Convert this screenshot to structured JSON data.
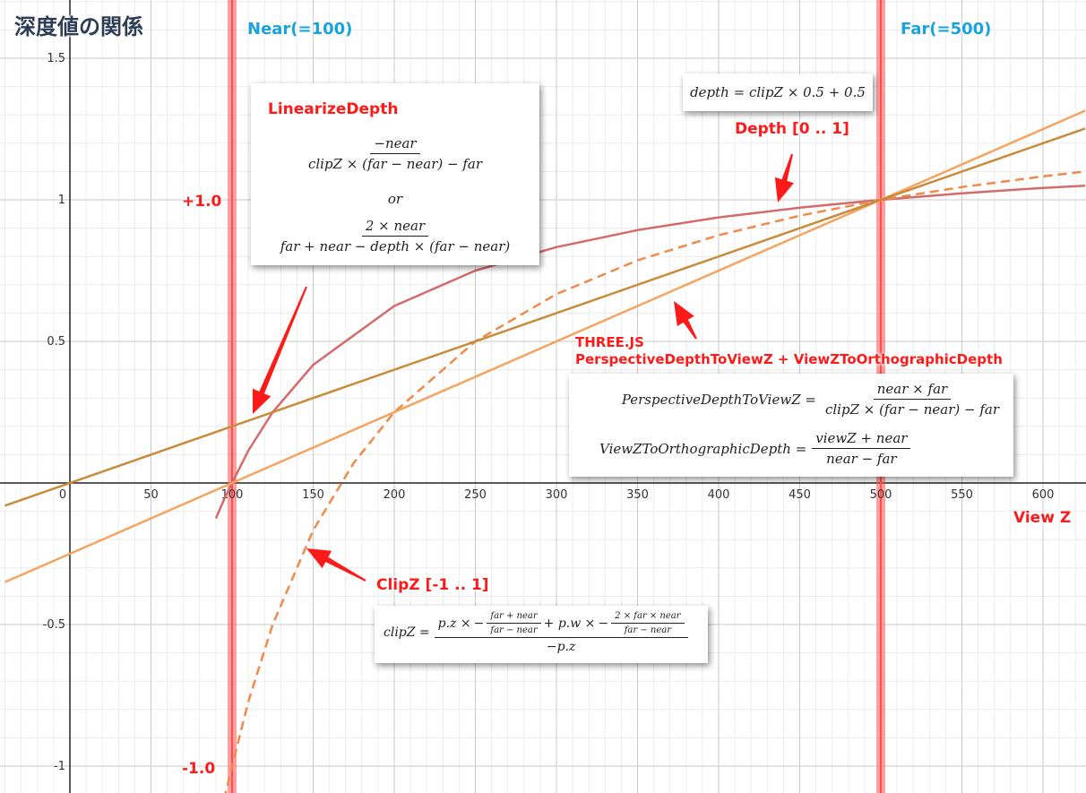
{
  "title": "深度値の関係",
  "colors": {
    "clip": "#d46a6a",
    "threejs": "#f4a460",
    "linearize": "#c98b3a",
    "clipzDashed": "#f08a4b",
    "guide": "#ff5050",
    "annRed": "#ff1a1a",
    "annBlue": "#19a3de"
  },
  "labels": {
    "near": "Near(=100)",
    "far": "Far(=500)",
    "plus_one": "+1.0",
    "minus_one": "-1.0",
    "view_z": "View Z",
    "depth": "Depth [0 .. 1]",
    "clipz": "ClipZ [-1 .. 1]",
    "threejs_line1": "THREE.JS",
    "threejs_line2": "PerspectiveDepthToViewZ + ViewZToOrthographicDepth",
    "linearize_title": "LinearizeDepth"
  },
  "formulas": {
    "depth_eq": "depth = clipZ × 0.5 + 0.5",
    "lin_num1": "−near",
    "lin_den1": "clipZ × (far − near) − far",
    "lin_or": "or",
    "lin_num2": "2 × near",
    "lin_den2": "far + near − depth × (far − near)",
    "p2v_lhs": "PerspectiveDepthToViewZ =",
    "p2v_num": "near × far",
    "p2v_den": "clipZ × (far − near) − far",
    "v2o_lhs": "ViewZToOrthographicDepth =",
    "v2o_num": "viewZ + near",
    "v2o_den": "near − far",
    "clip_lhs": "clipZ =",
    "clip_a": "p.z ×",
    "clip_minus1": "−",
    "clip_f1_num": "far + near",
    "clip_f1_den": "far − near",
    "clip_b": "+ p.w ×",
    "clip_minus2": "−",
    "clip_f2_num": "2 × far × near",
    "clip_f2_den": "far − near",
    "clip_den": "−p.z"
  },
  "chart_data": {
    "type": "line",
    "xlabel": "View Z",
    "ylabel": "",
    "xlim": [
      -40,
      626
    ],
    "ylim": [
      -1.1,
      1.65
    ],
    "x_ticks": [
      0,
      50,
      100,
      150,
      200,
      250,
      300,
      350,
      400,
      450,
      500,
      550,
      600
    ],
    "y_ticks": [
      1.5,
      1,
      0.5,
      -0.5,
      -1
    ],
    "grid": true,
    "near": 100,
    "far": 500,
    "series": [
      {
        "name": "Depth [0 .. 1]",
        "style": "solid",
        "color": "#d46a6a",
        "x": [
          90,
          95,
          100,
          110,
          125,
          150,
          200,
          250,
          300,
          350,
          400,
          450,
          500,
          550,
          600,
          626
        ],
        "y": [
          -0.125,
          -0.059,
          0.0,
          0.114,
          0.25,
          0.417,
          0.625,
          0.75,
          0.833,
          0.893,
          0.938,
          0.972,
          1.0,
          1.023,
          1.042,
          1.05
        ]
      },
      {
        "name": "ClipZ [-1 .. 1]",
        "style": "dashed",
        "color": "#f08a4b",
        "x": [
          95,
          100,
          110,
          125,
          150,
          175,
          200,
          250,
          300,
          350,
          400,
          450,
          500,
          550,
          600,
          626
        ],
        "y": [
          -1.118,
          -1.0,
          -0.773,
          -0.5,
          -0.167,
          0.071,
          0.25,
          0.5,
          0.667,
          0.786,
          0.875,
          0.944,
          1.0,
          1.045,
          1.083,
          1.1
        ]
      },
      {
        "name": "THREE.JS",
        "style": "solid",
        "color": "#f4a460",
        "x": [
          -40,
          626
        ],
        "y": [
          -0.35,
          1.315
        ]
      },
      {
        "name": "LinearizeDepth",
        "style": "solid",
        "color": "#c98b3a",
        "x": [
          -40,
          626
        ],
        "y": [
          -0.08,
          1.252
        ]
      }
    ]
  }
}
